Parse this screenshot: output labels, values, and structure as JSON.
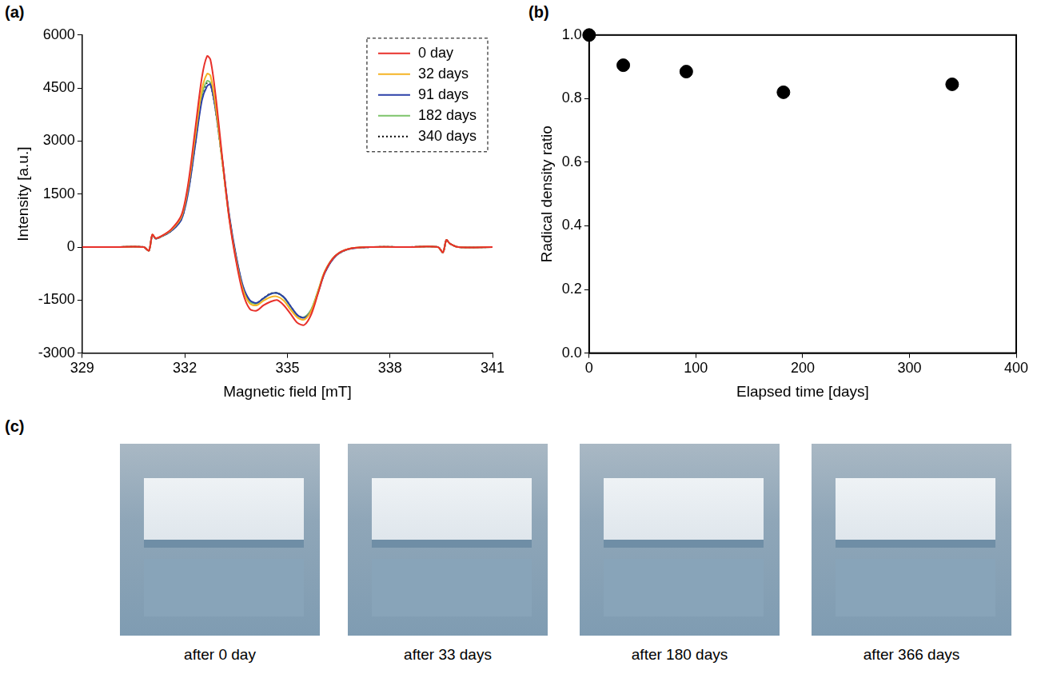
{
  "chart_data": [
    {
      "panel": "(a)",
      "type": "line",
      "x_label": "Magnetic field [mT]",
      "y_label": "Intensity [a.u.]",
      "x": [
        329,
        330,
        330.8,
        330.95,
        331.05,
        331.15,
        331.3,
        331.6,
        331.9,
        332.1,
        332.3,
        332.5,
        332.65,
        332.75,
        332.9,
        333.1,
        333.3,
        333.5,
        333.7,
        333.9,
        334.1,
        334.3,
        334.5,
        334.7,
        334.9,
        335.1,
        335.3,
        335.5,
        335.7,
        335.9,
        336.1,
        336.4,
        336.8,
        337.5,
        338.5,
        339.4,
        339.55,
        339.65,
        339.75,
        340,
        341
      ],
      "series": [
        {
          "name": "0 day",
          "color": "#e8302a",
          "values": [
            0,
            0,
            0,
            -100,
            350,
            250,
            300,
            500,
            900,
            1800,
            3300,
            4800,
            5400,
            5300,
            4300,
            2500,
            800,
            -400,
            -1300,
            -1750,
            -1800,
            -1650,
            -1550,
            -1500,
            -1650,
            -1900,
            -2150,
            -2200,
            -1900,
            -1300,
            -700,
            -250,
            -50,
            0,
            0,
            0,
            -150,
            200,
            100,
            0,
            0
          ]
        },
        {
          "name": "32 days",
          "color": "#f5b323",
          "values": [
            0,
            0,
            0,
            -100,
            350,
            250,
            300,
            480,
            850,
            1700,
            3100,
            4450,
            4900,
            4850,
            4000,
            2400,
            800,
            -350,
            -1200,
            -1600,
            -1650,
            -1520,
            -1420,
            -1400,
            -1520,
            -1780,
            -2000,
            -2050,
            -1800,
            -1250,
            -680,
            -250,
            -50,
            0,
            0,
            0,
            -150,
            200,
            100,
            0,
            0
          ]
        },
        {
          "name": "91 days",
          "color": "#2b3fa8",
          "values": [
            0,
            0,
            0,
            -100,
            340,
            240,
            290,
            450,
            780,
            1550,
            2850,
            4150,
            4550,
            4600,
            3900,
            2450,
            900,
            -250,
            -1100,
            -1500,
            -1580,
            -1450,
            -1330,
            -1300,
            -1420,
            -1680,
            -1930,
            -2000,
            -1800,
            -1280,
            -720,
            -270,
            -60,
            0,
            0,
            0,
            -150,
            200,
            100,
            0,
            0
          ]
        },
        {
          "name": "182 days",
          "color": "#7cc46a",
          "values": [
            0,
            0,
            0,
            -100,
            340,
            240,
            290,
            460,
            800,
            1600,
            2950,
            4300,
            4700,
            4650,
            3900,
            2400,
            850,
            -300,
            -1150,
            -1550,
            -1600,
            -1460,
            -1330,
            -1300,
            -1430,
            -1700,
            -1950,
            -1980,
            -1760,
            -1230,
            -680,
            -250,
            -50,
            0,
            0,
            0,
            -150,
            200,
            100,
            0,
            0
          ]
        },
        {
          "name": "340 days",
          "color": "#000000",
          "line_style": "dotted",
          "values": [
            0,
            0,
            0,
            -100,
            340,
            240,
            290,
            455,
            790,
            1580,
            2900,
            4250,
            4650,
            4620,
            3880,
            2400,
            850,
            -280,
            -1130,
            -1530,
            -1590,
            -1450,
            -1320,
            -1300,
            -1420,
            -1690,
            -1940,
            -1990,
            -1780,
            -1250,
            -700,
            -260,
            -55,
            0,
            0,
            0,
            -150,
            200,
            100,
            0,
            0
          ]
        }
      ],
      "xlim": [
        329,
        341
      ],
      "xticks": [
        329,
        332,
        335,
        338,
        341
      ],
      "ylim": [
        -3000,
        6000
      ],
      "yticks": [
        -3000,
        -1500,
        0,
        1500,
        3000,
        4500,
        6000
      ],
      "grid": false,
      "legend": "upper right"
    },
    {
      "panel": "(b)",
      "type": "scatter",
      "x_label": "Elapsed time [days]",
      "y_label": "Radical density ratio",
      "x": [
        0,
        32,
        91,
        182,
        340
      ],
      "values": [
        1.0,
        0.905,
        0.885,
        0.82,
        0.845
      ],
      "color": "#000000",
      "marker": "circle",
      "xlim": [
        0,
        400
      ],
      "xticks": [
        0,
        100,
        200,
        300,
        400
      ],
      "ylim": [
        0,
        1
      ],
      "yticks": [
        {
          "value": 0,
          "label": "0.0"
        },
        {
          "value": 0.2,
          "label": "0.2"
        },
        {
          "value": 0.4,
          "label": "0.4"
        },
        {
          "value": 0.6,
          "label": "0.6"
        },
        {
          "value": 0.8,
          "label": "0.8"
        },
        {
          "value": 1,
          "label": "1.0"
        }
      ],
      "grid": false
    }
  ],
  "photos": {
    "panel": "(c)",
    "captions": [
      "after 0 day",
      "after 33 days",
      "after 180 days",
      "after 366 days"
    ]
  }
}
